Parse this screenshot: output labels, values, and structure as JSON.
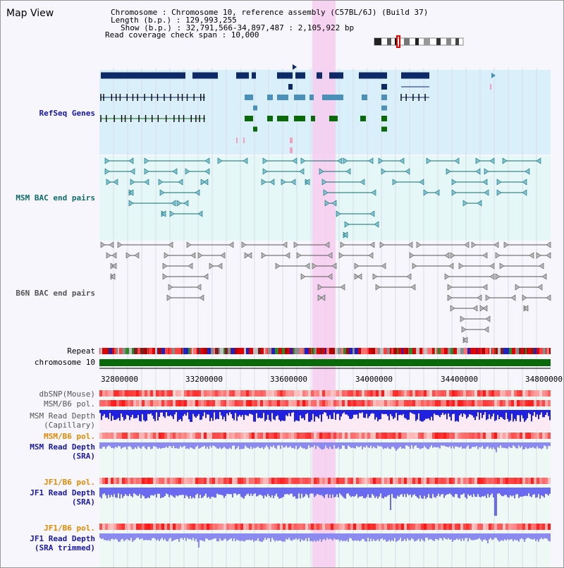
{
  "header": {
    "title": "Map View",
    "info": {
      "chromosome_label": "Chromosome      : Chromosome 10, reference assembly (C57BL/6J) (Build 37)",
      "length_label": "Length (b.p.) : 129,993,255",
      "show_label": "Show (b.p.) : 32,791,566-34,897,487 : 2,105,922 bp",
      "coverage_label": "Read coverage check span : 10,000"
    }
  },
  "tracks": {
    "refseq": {
      "label": "RefSeq Genes",
      "color": "#1a1aa0"
    },
    "msm_bac": {
      "label": "MSM BAC end pairs",
      "color": "#0f6b6b"
    },
    "b6n_bac": {
      "label": "B6N BAC end pairs",
      "color": "#606060"
    },
    "repeat": {
      "label": "Repeat"
    },
    "chromosome": {
      "label": "chromosome 10"
    },
    "dbsnp": {
      "label": "dbSNP(Mouse)"
    },
    "msm_b6_pol_1": {
      "label": "MSM/B6 pol."
    },
    "msm_depth_cap": {
      "label_1": "MSM Read Depth",
      "label_2": "(Capillary)"
    },
    "msm_b6_pol_2": {
      "label": "MSM/B6 pol."
    },
    "msm_depth_sra": {
      "label_1": "MSM Read Depth",
      "label_2": "(SRA)"
    },
    "jf1_b6_pol_1": {
      "label": "JF1/B6 pol."
    },
    "jf1_depth_sra": {
      "label_1": "JF1 Read Depth",
      "label_2": "(SRA)"
    },
    "jf1_b6_pol_2": {
      "label": "JF1/B6 pol."
    },
    "jf1_depth_trim": {
      "label_1": "JF1 Read Depth",
      "label_2": "(SRA trimmed)"
    }
  },
  "axis": {
    "ticks": [
      "32800000",
      "33200000",
      "33600000",
      "34000000",
      "34400000",
      "34800000"
    ]
  },
  "colors": {
    "refseq_bg": "#d9eff9",
    "bac_bg": "#e6f7f7",
    "highlight": "#f7cdf0",
    "gene_dark": "#0d2a66",
    "gene_mid": "#4a90b8",
    "gene_green": "#0a6a0a",
    "chromosome": "#0a6a0a",
    "label_blue": "#1a1aa0",
    "label_teal": "#0f6b6b",
    "label_gray": "#555555",
    "label_orange": "#e08a00"
  }
}
